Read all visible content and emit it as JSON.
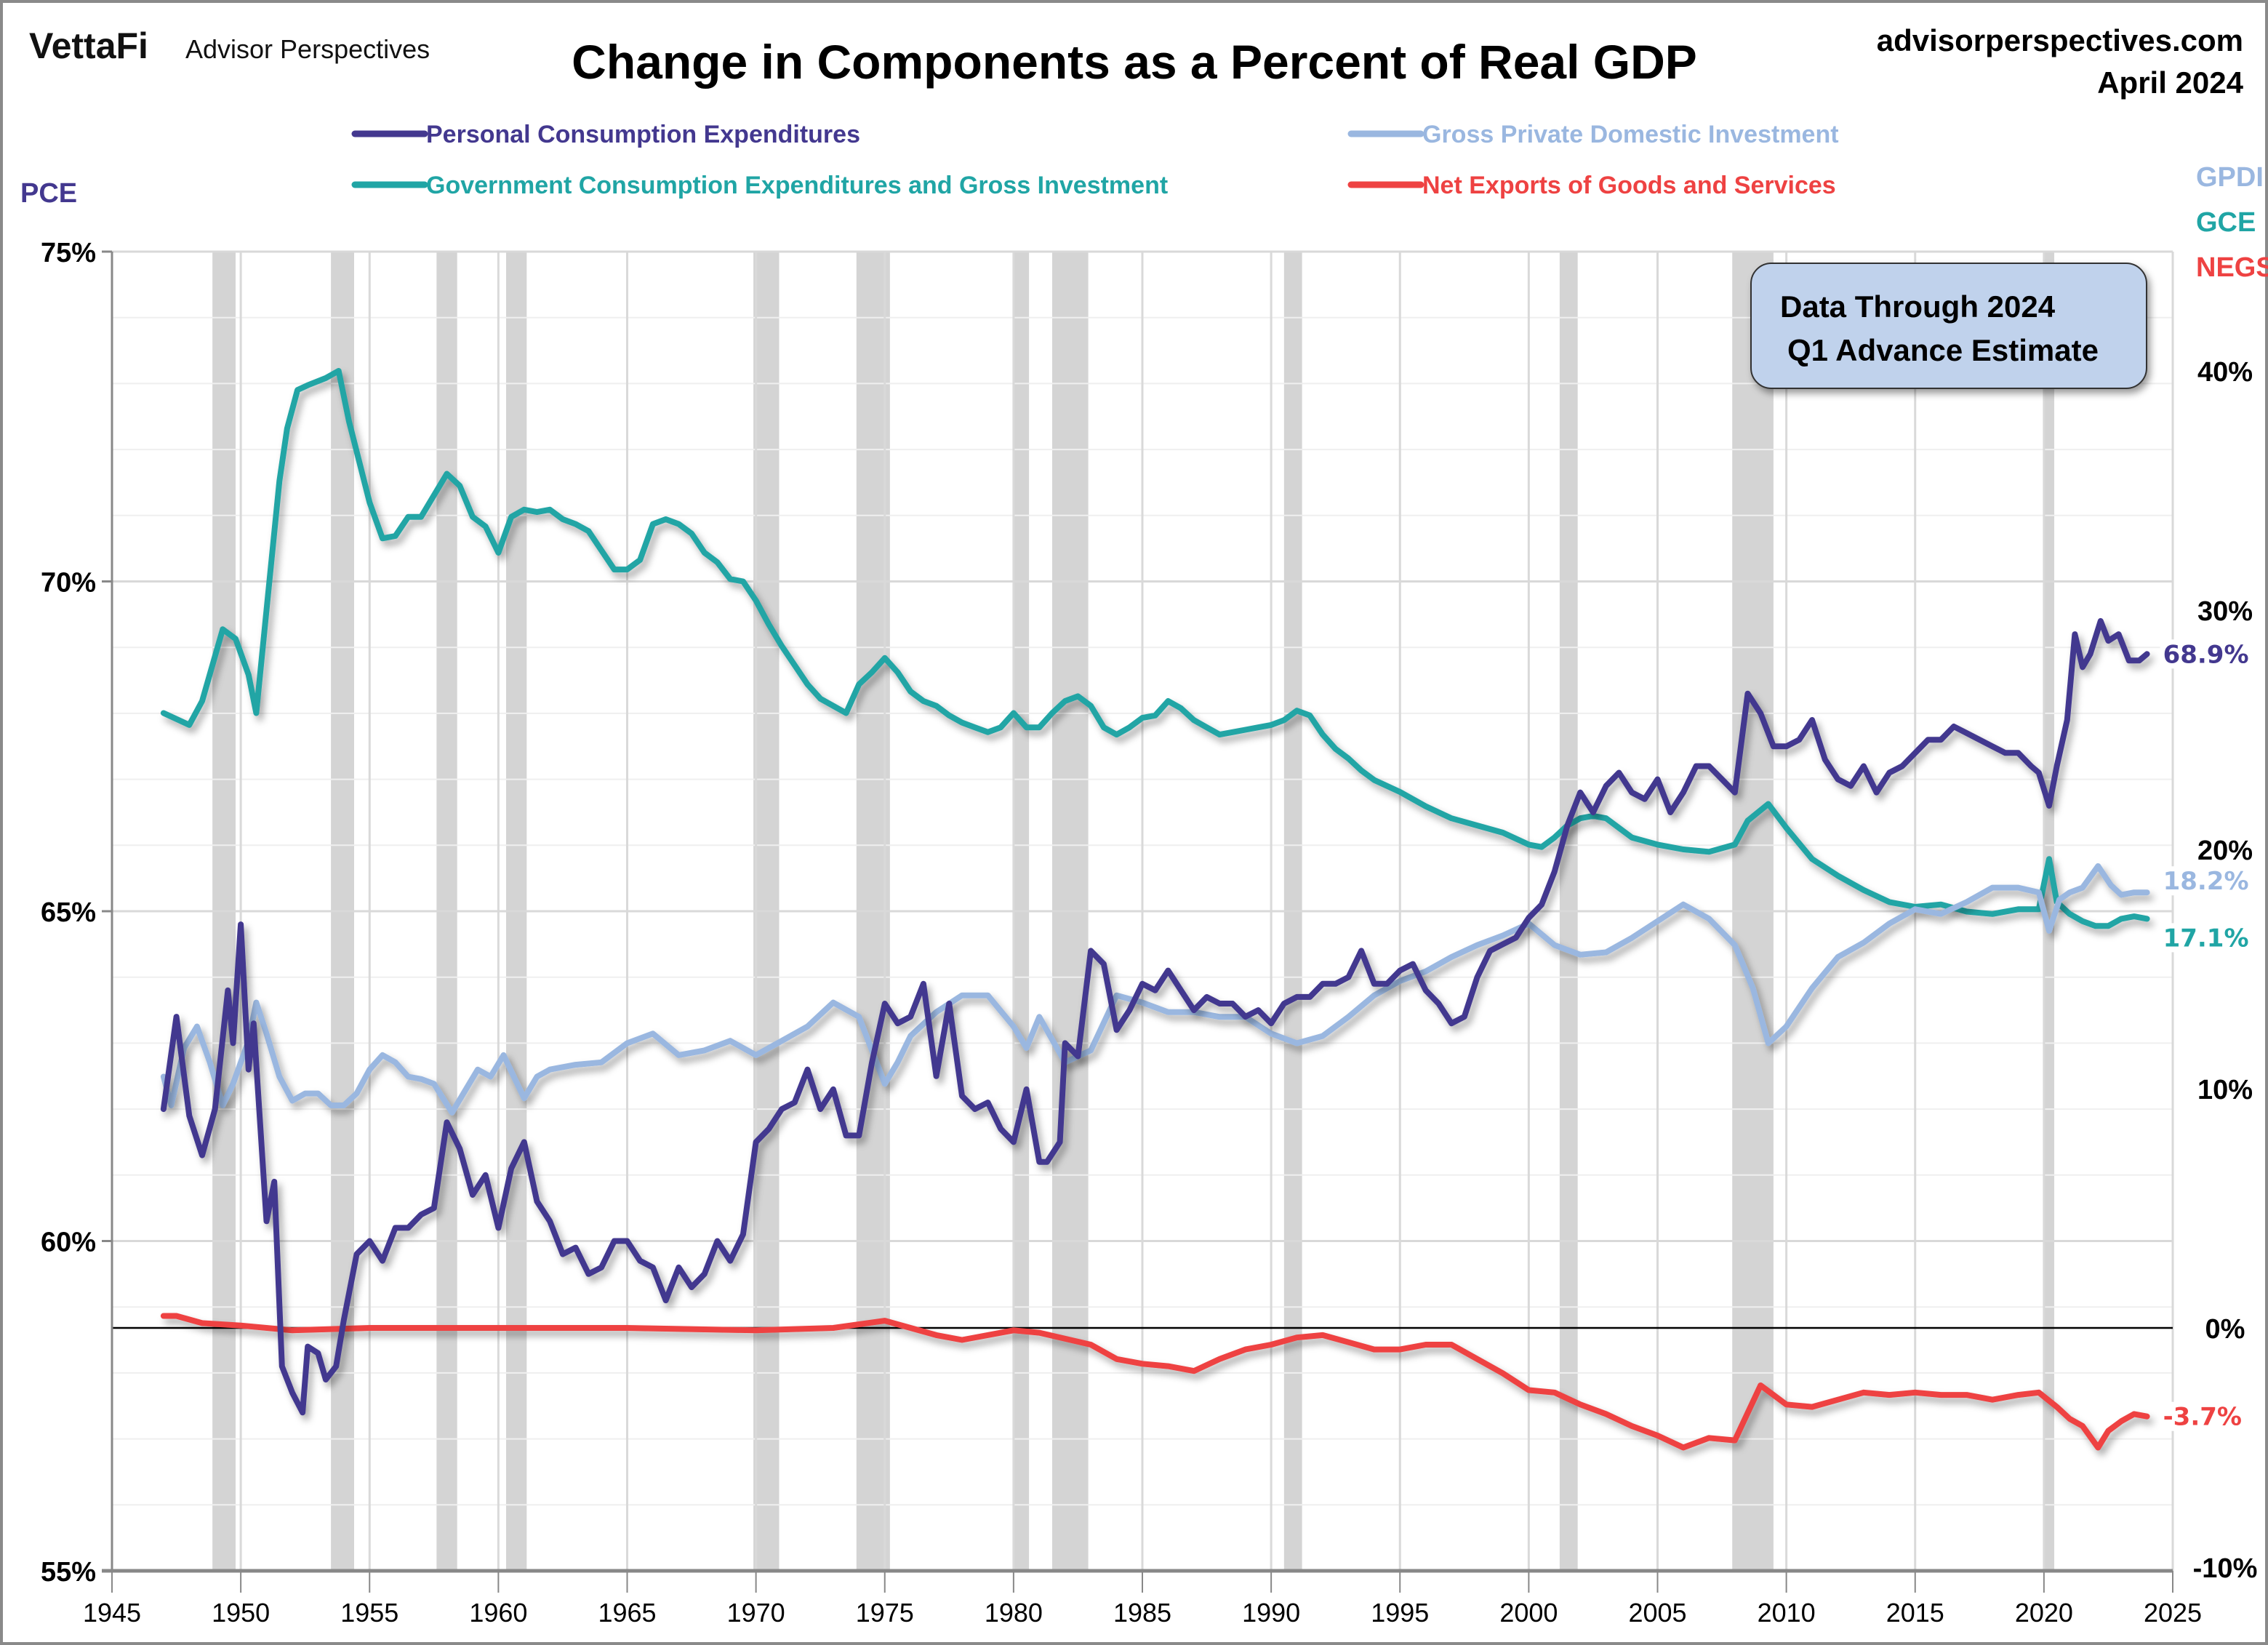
{
  "header": {
    "brand_logo": "VettaFi",
    "brand_name": "Advisor Perspectives",
    "site": "advisorperspectives.com",
    "date": "April 2024"
  },
  "annotation": {
    "line1": "Data Through 2024",
    "line2": "Q1 Advance Estimate"
  },
  "chart_data": {
    "type": "line",
    "title": "Change in Components as a Percent of Real GDP",
    "xlabel": "",
    "x_range": [
      1945,
      2025
    ],
    "x_ticks": [
      "1945",
      "1950",
      "1955",
      "1960",
      "1965",
      "1970",
      "1975",
      "1980",
      "1985",
      "1990",
      "1995",
      "2000",
      "2005",
      "2010",
      "2015",
      "2020",
      "2025"
    ],
    "left_axis": {
      "label": "PCE",
      "ylim": [
        55,
        75
      ],
      "ticks": [
        "55%",
        "60%",
        "65%",
        "70%",
        "75%"
      ],
      "tick_values": [
        55,
        60,
        65,
        70,
        75
      ]
    },
    "right_axis": {
      "labels": [
        "GPDI",
        "GCE",
        "NEGS"
      ],
      "ylim": [
        -10,
        45
      ],
      "ticks": [
        "-10%",
        "0%",
        "10%",
        "20%",
        "30%",
        "40%"
      ],
      "tick_values": [
        -10,
        0,
        10,
        20,
        30,
        40
      ]
    },
    "grid": true,
    "legend_position": "top",
    "recessions": [
      [
        1948.9,
        1949.8
      ],
      [
        1953.5,
        1954.4
      ],
      [
        1957.6,
        1958.4
      ],
      [
        1960.3,
        1961.1
      ],
      [
        1969.9,
        1970.9
      ],
      [
        1973.9,
        1975.2
      ],
      [
        1980.0,
        1980.6
      ],
      [
        1981.5,
        1982.9
      ],
      [
        1990.5,
        1991.2
      ],
      [
        2001.2,
        2001.9
      ],
      [
        2007.9,
        2009.5
      ],
      [
        2020.0,
        2020.4
      ]
    ],
    "series": [
      {
        "name": "Personal Consumption Expenditures",
        "short": "PCE",
        "axis": "left",
        "color": "#43388f",
        "end_label": "68.9%",
        "x": [
          1947.0,
          1947.5,
          1948.0,
          1948.5,
          1949.0,
          1949.5,
          1949.7,
          1950.0,
          1950.3,
          1950.5,
          1951.0,
          1951.3,
          1951.6,
          1952.0,
          1952.4,
          1952.6,
          1953.0,
          1953.3,
          1953.7,
          1954.0,
          1954.5,
          1955.0,
          1955.5,
          1956.0,
          1956.5,
          1957.0,
          1957.5,
          1958.0,
          1958.5,
          1959.0,
          1959.5,
          1960.0,
          1960.5,
          1961.0,
          1961.5,
          1962.0,
          1962.5,
          1963.0,
          1963.5,
          1964.0,
          1964.5,
          1965.0,
          1965.5,
          1966.0,
          1966.5,
          1967.0,
          1967.5,
          1968.0,
          1968.5,
          1969.0,
          1969.5,
          1970.0,
          1970.5,
          1971.0,
          1971.5,
          1972.0,
          1972.5,
          1973.0,
          1973.5,
          1974.0,
          1974.5,
          1975.0,
          1975.5,
          1976.0,
          1976.5,
          1977.0,
          1977.5,
          1978.0,
          1978.5,
          1979.0,
          1979.5,
          1980.0,
          1980.5,
          1981.0,
          1981.3,
          1981.8,
          1982.0,
          1982.5,
          1983.0,
          1983.5,
          1984.0,
          1984.5,
          1985.0,
          1985.5,
          1986.0,
          1986.5,
          1987.0,
          1987.5,
          1988.0,
          1988.5,
          1989.0,
          1989.5,
          1990.0,
          1990.5,
          1991.0,
          1991.5,
          1992.0,
          1992.5,
          1993.0,
          1993.5,
          1994.0,
          1994.5,
          1995.0,
          1995.5,
          1996.0,
          1996.5,
          1997.0,
          1997.5,
          1998.0,
          1998.5,
          1999.0,
          1999.5,
          2000.0,
          2000.5,
          2001.0,
          2001.5,
          2002.0,
          2002.5,
          2003.0,
          2003.5,
          2004.0,
          2004.5,
          2005.0,
          2005.5,
          2006.0,
          2006.5,
          2007.0,
          2007.5,
          2008.0,
          2008.5,
          2009.0,
          2009.5,
          2010.0,
          2010.5,
          2011.0,
          2011.5,
          2012.0,
          2012.5,
          2013.0,
          2013.5,
          2014.0,
          2014.5,
          2015.0,
          2015.5,
          2016.0,
          2016.5,
          2017.0,
          2017.5,
          2018.0,
          2018.5,
          2019.0,
          2019.5,
          2019.8,
          2020.2,
          2020.5,
          2020.9,
          2021.2,
          2021.5,
          2021.8,
          2022.2,
          2022.5,
          2022.9,
          2023.3,
          2023.7,
          2024.0
        ],
        "values": [
          62.0,
          63.4,
          61.9,
          61.3,
          62.0,
          63.8,
          63.0,
          64.8,
          62.6,
          63.3,
          60.3,
          60.9,
          58.1,
          57.7,
          57.4,
          58.4,
          58.3,
          57.9,
          58.1,
          58.8,
          59.8,
          60.0,
          59.7,
          60.2,
          60.2,
          60.4,
          60.5,
          61.8,
          61.4,
          60.7,
          61.0,
          60.2,
          61.1,
          61.5,
          60.6,
          60.3,
          59.8,
          59.9,
          59.5,
          59.6,
          60.0,
          60.0,
          59.7,
          59.6,
          59.1,
          59.6,
          59.3,
          59.5,
          60.0,
          59.7,
          60.1,
          61.5,
          61.7,
          62.0,
          62.1,
          62.6,
          62.0,
          62.3,
          61.6,
          61.6,
          62.7,
          63.6,
          63.3,
          63.4,
          63.9,
          62.5,
          63.6,
          62.2,
          62.0,
          62.1,
          61.7,
          61.5,
          62.3,
          61.2,
          61.2,
          61.5,
          63.0,
          62.8,
          64.4,
          64.2,
          63.2,
          63.5,
          63.9,
          63.8,
          64.1,
          63.8,
          63.5,
          63.7,
          63.6,
          63.6,
          63.4,
          63.5,
          63.3,
          63.6,
          63.7,
          63.7,
          63.9,
          63.9,
          64.0,
          64.4,
          63.9,
          63.9,
          64.1,
          64.2,
          63.8,
          63.6,
          63.3,
          63.4,
          64.0,
          64.4,
          64.5,
          64.6,
          64.9,
          65.1,
          65.6,
          66.3,
          66.8,
          66.5,
          66.9,
          67.1,
          66.8,
          66.7,
          67.0,
          66.5,
          66.8,
          67.2,
          67.2,
          67.0,
          66.8,
          68.3,
          68.0,
          67.5,
          67.5,
          67.6,
          67.9,
          67.3,
          67.0,
          66.9,
          67.2,
          66.8,
          67.1,
          67.2,
          67.4,
          67.6,
          67.6,
          67.8,
          67.7,
          67.6,
          67.5,
          67.4,
          67.4,
          67.2,
          67.1,
          66.6,
          67.2,
          67.9,
          69.2,
          68.7,
          68.9,
          69.4,
          69.1,
          69.2,
          68.8,
          68.8,
          68.9
        ]
      },
      {
        "name": "Government Consumption Expenditures and Gross Investment",
        "short": "GCE",
        "axis": "right",
        "color": "#20a5a5",
        "end_label": "17.1%",
        "x": [
          1947.0,
          1948.0,
          1948.5,
          1949.3,
          1949.8,
          1950.3,
          1950.6,
          1951.0,
          1951.5,
          1951.8,
          1952.2,
          1952.6,
          1953.3,
          1953.8,
          1954.2,
          1954.6,
          1955.0,
          1955.5,
          1956.0,
          1956.5,
          1957.0,
          1957.5,
          1958.0,
          1958.5,
          1959.0,
          1959.5,
          1960.0,
          1960.5,
          1961.0,
          1961.5,
          1962.0,
          1962.5,
          1963.0,
          1963.5,
          1964.0,
          1964.5,
          1965.0,
          1965.5,
          1966.0,
          1966.5,
          1967.0,
          1967.5,
          1968.0,
          1968.5,
          1969.0,
          1969.5,
          1970.0,
          1970.5,
          1971.0,
          1971.5,
          1972.0,
          1972.5,
          1973.0,
          1973.5,
          1974.0,
          1974.5,
          1975.0,
          1975.5,
          1976.0,
          1976.5,
          1977.0,
          1977.5,
          1978.0,
          1978.5,
          1979.0,
          1979.5,
          1980.0,
          1980.5,
          1981.0,
          1981.5,
          1982.0,
          1982.5,
          1983.0,
          1983.5,
          1984.0,
          1984.5,
          1985.0,
          1985.5,
          1986.0,
          1986.5,
          1987.0,
          1987.5,
          1988.0,
          1988.5,
          1989.0,
          1989.5,
          1990.0,
          1990.5,
          1991.0,
          1991.5,
          1992.0,
          1992.5,
          1993.0,
          1993.5,
          1994.0,
          1995.0,
          1996.0,
          1997.0,
          1998.0,
          1999.0,
          2000.0,
          2000.5,
          2001.0,
          2001.5,
          2002.0,
          2002.5,
          2003.0,
          2004.0,
          2005.0,
          2006.0,
          2007.0,
          2008.0,
          2008.5,
          2009.3,
          2010.0,
          2011.0,
          2012.0,
          2013.0,
          2014.0,
          2015.0,
          2016.0,
          2017.0,
          2018.0,
          2019.0,
          2019.8,
          2020.2,
          2020.5,
          2021.0,
          2021.5,
          2022.0,
          2022.5,
          2023.0,
          2023.5,
          2024.0
        ],
        "values": [
          25.7,
          25.2,
          26.2,
          29.2,
          28.8,
          27.3,
          25.7,
          30.0,
          35.4,
          37.6,
          39.2,
          39.4,
          39.7,
          40.0,
          37.9,
          36.2,
          34.5,
          33.0,
          33.1,
          33.9,
          33.9,
          34.8,
          35.7,
          35.2,
          33.9,
          33.5,
          32.4,
          33.9,
          34.2,
          34.1,
          34.2,
          33.8,
          33.6,
          33.3,
          32.5,
          31.7,
          31.7,
          32.1,
          33.6,
          33.8,
          33.6,
          33.2,
          32.4,
          32.0,
          31.3,
          31.2,
          30.4,
          29.4,
          28.5,
          27.7,
          26.9,
          26.3,
          26.0,
          25.7,
          26.9,
          27.4,
          28.0,
          27.4,
          26.6,
          26.2,
          26.0,
          25.6,
          25.3,
          25.1,
          24.9,
          25.1,
          25.7,
          25.1,
          25.1,
          25.7,
          26.2,
          26.4,
          26.0,
          25.1,
          24.8,
          25.1,
          25.5,
          25.6,
          26.2,
          25.9,
          25.4,
          25.1,
          24.8,
          24.9,
          25.0,
          25.1,
          25.2,
          25.4,
          25.8,
          25.6,
          24.8,
          24.2,
          23.8,
          23.3,
          22.9,
          22.4,
          21.8,
          21.3,
          21.0,
          20.7,
          20.2,
          20.1,
          20.5,
          21.0,
          21.3,
          21.4,
          21.3,
          20.5,
          20.2,
          20.0,
          19.9,
          20.2,
          21.2,
          21.9,
          20.9,
          19.6,
          18.9,
          18.3,
          17.8,
          17.6,
          17.7,
          17.4,
          17.3,
          17.5,
          17.5,
          19.6,
          17.8,
          17.3,
          17.0,
          16.8,
          16.8,
          17.1,
          17.2,
          17.1
        ]
      },
      {
        "name": "Gross Private Domestic Investment",
        "short": "GPDI",
        "axis": "right",
        "color": "#9ab7e0",
        "end_label": "18.2%",
        "x": [
          1947.0,
          1947.3,
          1947.8,
          1948.3,
          1948.8,
          1949.3,
          1949.7,
          1950.3,
          1950.6,
          1951.0,
          1951.5,
          1952.0,
          1952.5,
          1953.0,
          1953.5,
          1954.0,
          1954.5,
          1955.0,
          1955.5,
          1956.0,
          1956.5,
          1957.0,
          1957.5,
          1958.2,
          1958.7,
          1959.2,
          1959.7,
          1960.2,
          1960.6,
          1961.0,
          1961.5,
          1962.0,
          1963.0,
          1964.0,
          1965.0,
          1966.0,
          1967.0,
          1968.0,
          1969.0,
          1970.0,
          1971.0,
          1972.0,
          1973.0,
          1974.0,
          1975.0,
          1975.5,
          1976.0,
          1977.0,
          1978.0,
          1979.0,
          1980.0,
          1980.5,
          1981.0,
          1982.0,
          1983.0,
          1984.0,
          1985.0,
          1986.0,
          1987.0,
          1988.0,
          1989.0,
          1990.0,
          1991.0,
          1992.0,
          1993.0,
          1994.0,
          1995.0,
          1996.0,
          1997.0,
          1998.0,
          1999.0,
          2000.0,
          2001.0,
          2002.0,
          2003.0,
          2004.0,
          2005.0,
          2006.0,
          2007.0,
          2008.0,
          2008.7,
          2009.3,
          2010.0,
          2011.0,
          2012.0,
          2013.0,
          2014.0,
          2015.0,
          2016.0,
          2017.0,
          2018.0,
          2019.0,
          2019.8,
          2020.2,
          2020.6,
          2021.0,
          2021.5,
          2022.1,
          2022.6,
          2023.0,
          2023.5,
          2024.0
        ],
        "values": [
          10.5,
          9.3,
          11.7,
          12.6,
          11.1,
          9.3,
          10.2,
          12.0,
          13.6,
          12.3,
          10.5,
          9.5,
          9.8,
          9.8,
          9.3,
          9.3,
          9.8,
          10.8,
          11.4,
          11.1,
          10.5,
          10.4,
          10.2,
          9.0,
          9.9,
          10.8,
          10.5,
          11.4,
          10.5,
          9.6,
          10.5,
          10.8,
          11.0,
          11.1,
          11.9,
          12.3,
          11.4,
          11.6,
          12.0,
          11.4,
          12.0,
          12.6,
          13.6,
          13.0,
          10.2,
          11.1,
          12.2,
          13.2,
          13.9,
          13.9,
          12.6,
          11.7,
          13.0,
          11.1,
          11.6,
          13.9,
          13.6,
          13.2,
          13.2,
          13.0,
          13.0,
          12.3,
          11.9,
          12.2,
          13.0,
          13.9,
          14.5,
          14.9,
          15.5,
          16.0,
          16.4,
          16.9,
          16.0,
          15.6,
          15.7,
          16.3,
          17.0,
          17.7,
          17.1,
          16.0,
          14.2,
          11.9,
          12.6,
          14.2,
          15.5,
          16.1,
          16.9,
          17.5,
          17.3,
          17.8,
          18.4,
          18.4,
          18.2,
          16.6,
          17.9,
          18.2,
          18.4,
          19.3,
          18.5,
          18.1,
          18.2,
          18.2
        ]
      },
      {
        "name": "Net Exports of Goods and Services",
        "short": "NEGS",
        "axis": "right",
        "color": "#ee4242",
        "end_label": "-3.7%",
        "x": [
          1947.0,
          1947.5,
          1948.5,
          1950.0,
          1952.0,
          1955.0,
          1960.0,
          1965.0,
          1970.0,
          1973.0,
          1975.0,
          1977.0,
          1978.0,
          1980.0,
          1981.0,
          1983.0,
          1984.0,
          1985.0,
          1986.0,
          1987.0,
          1988.0,
          1989.0,
          1990.0,
          1991.0,
          1992.0,
          1993.0,
          1994.0,
          1995.0,
          1996.0,
          1997.0,
          1998.0,
          1999.0,
          2000.0,
          2001.0,
          2002.0,
          2003.0,
          2004.0,
          2005.0,
          2006.0,
          2007.0,
          2008.0,
          2009.0,
          2010.0,
          2011.0,
          2012.0,
          2013.0,
          2014.0,
          2015.0,
          2016.0,
          2017.0,
          2018.0,
          2019.0,
          2019.8,
          2020.5,
          2021.0,
          2021.5,
          2022.1,
          2022.5,
          2023.0,
          2023.5,
          2024.0
        ],
        "values": [
          0.5,
          0.5,
          0.2,
          0.1,
          -0.1,
          0.0,
          0.0,
          0.0,
          -0.1,
          0.0,
          0.3,
          -0.3,
          -0.5,
          -0.1,
          -0.2,
          -0.7,
          -1.3,
          -1.5,
          -1.6,
          -1.8,
          -1.3,
          -0.9,
          -0.7,
          -0.4,
          -0.3,
          -0.6,
          -0.9,
          -0.9,
          -0.7,
          -0.7,
          -1.3,
          -1.9,
          -2.6,
          -2.7,
          -3.2,
          -3.6,
          -4.1,
          -4.5,
          -5.0,
          -4.6,
          -4.7,
          -2.4,
          -3.2,
          -3.3,
          -3.0,
          -2.7,
          -2.8,
          -2.7,
          -2.8,
          -2.8,
          -3.0,
          -2.8,
          -2.7,
          -3.3,
          -3.8,
          -4.1,
          -5.0,
          -4.3,
          -3.9,
          -3.6,
          -3.7
        ]
      }
    ]
  }
}
